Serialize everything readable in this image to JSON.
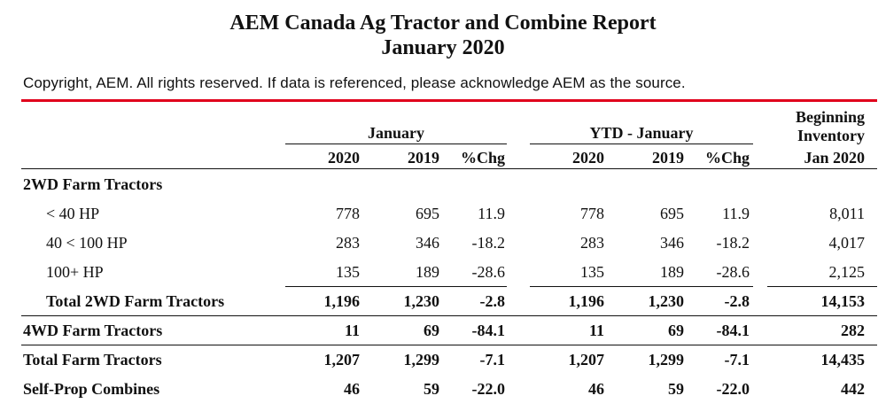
{
  "report": {
    "title": "AEM Canada Ag Tractor and Combine Report",
    "subtitle": "January 2020",
    "copyright": "Copyright, AEM. All rights reserved. If data is referenced, please acknowledge AEM as the source."
  },
  "table": {
    "group_month": "January",
    "group_ytd": "YTD - January",
    "inventory_header_line1": "Beginning",
    "inventory_header_line2": "Inventory",
    "columns": [
      "2020",
      "2019",
      "%Chg",
      "2020",
      "2019",
      "%Chg",
      "Jan 2020"
    ],
    "rows": [
      {
        "label": "2WD Farm Tractors",
        "values": []
      },
      {
        "label": "< 40 HP",
        "values": [
          "778",
          "695",
          "11.9",
          "778",
          "695",
          "11.9",
          "8,011"
        ]
      },
      {
        "label": "40 < 100 HP",
        "values": [
          "283",
          "346",
          "-18.2",
          "283",
          "346",
          "-18.2",
          "4,017"
        ]
      },
      {
        "label": "100+ HP",
        "values": [
          "135",
          "189",
          "-28.6",
          "135",
          "189",
          "-28.6",
          "2,125"
        ]
      },
      {
        "label": "Total 2WD Farm Tractors",
        "values": [
          "1,196",
          "1,230",
          "-2.8",
          "1,196",
          "1,230",
          "-2.8",
          "14,153"
        ]
      },
      {
        "label": "4WD Farm Tractors",
        "values": [
          "11",
          "69",
          "-84.1",
          "11",
          "69",
          "-84.1",
          "282"
        ]
      },
      {
        "label": "Total Farm Tractors",
        "values": [
          "1,207",
          "1,299",
          "-7.1",
          "1,207",
          "1,299",
          "-7.1",
          "14,435"
        ]
      },
      {
        "label": "Self-Prop Combines",
        "values": [
          "46",
          "59",
          "-22.0",
          "46",
          "59",
          "-22.0",
          "442"
        ]
      }
    ]
  }
}
